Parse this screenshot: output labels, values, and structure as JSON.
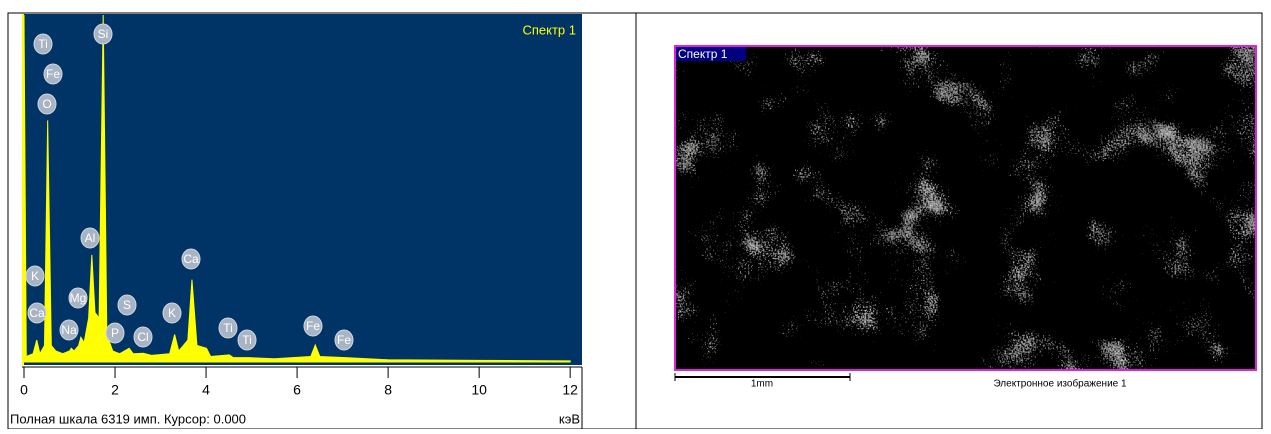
{
  "chart_data": {
    "type": "area",
    "title": "Спектр 1",
    "color": "#ffff00",
    "background": "#003366",
    "x": [
      0,
      0.05,
      0.2,
      0.28,
      0.35,
      0.45,
      0.52,
      0.6,
      0.7,
      0.85,
      1.0,
      1.04,
      1.1,
      1.2,
      1.25,
      1.32,
      1.42,
      1.49,
      1.56,
      1.65,
      1.74,
      1.82,
      1.95,
      2.01,
      2.1,
      2.31,
      2.4,
      2.62,
      2.8,
      3.2,
      3.31,
      3.4,
      3.6,
      3.69,
      3.8,
      4.01,
      4.1,
      4.51,
      4.6,
      4.93,
      5.5,
      6.3,
      6.4,
      6.5,
      7.06,
      8,
      10,
      12
    ],
    "values": [
      6319,
      100,
      150,
      400,
      150,
      300,
      4400,
      300,
      200,
      150,
      200,
      250,
      200,
      300,
      450,
      350,
      800,
      1950,
      900,
      800,
      6319,
      500,
      200,
      180,
      150,
      250,
      150,
      160,
      120,
      150,
      500,
      200,
      400,
      1500,
      300,
      250,
      100,
      130,
      80,
      80,
      60,
      100,
      310,
      100,
      80,
      40,
      30,
      20
    ],
    "xlim": [
      0,
      12.26
    ],
    "ylim": [
      0,
      6319
    ],
    "xticks": [
      0,
      2,
      4,
      6,
      8,
      10,
      12
    ],
    "peak_labels": [
      "Ti",
      "Si",
      "Fe",
      "O",
      "Al",
      "Ca",
      "K",
      "Mg",
      "S",
      "Ca",
      "Na",
      "P",
      "Cl",
      "K",
      "Ti",
      "Ti",
      "Fe",
      "Fe"
    ],
    "footer": "Полная шкала 6319 имп. Курсор: 0.000",
    "x_unit": "кэВ"
  },
  "image": {
    "label": "Спектр 1",
    "scale_bar": "1mm",
    "caption": "Электронное изображение 1"
  }
}
